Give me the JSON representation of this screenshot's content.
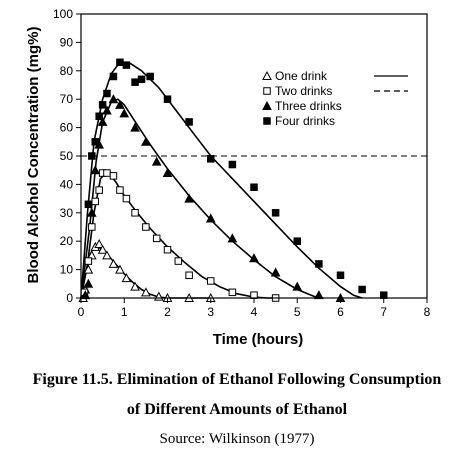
{
  "chart_data": {
    "type": "scatter",
    "xlabel": "Time (hours)",
    "ylabel": "Blood Alcohol Concentration (mg%)",
    "xlim": [
      0,
      8
    ],
    "ylim": [
      0,
      100
    ],
    "xticks": [
      "0",
      "1",
      "2",
      "3",
      "4",
      "5",
      "6",
      "7",
      "8"
    ],
    "yticks": [
      "0",
      "10",
      "20",
      "30",
      "40",
      "50",
      "60",
      "70",
      "80",
      "90",
      "100"
    ],
    "grid": false,
    "legend_position": "top-right",
    "reference_line": {
      "y": 50,
      "style": "dashed"
    },
    "series": [
      {
        "name": "One drink",
        "marker": "open-triangle",
        "points": [
          [
            0.05,
            0
          ],
          [
            0.1,
            3
          ],
          [
            0.17,
            10
          ],
          [
            0.25,
            15
          ],
          [
            0.33,
            18
          ],
          [
            0.42,
            19
          ],
          [
            0.5,
            17
          ],
          [
            0.6,
            15
          ],
          [
            0.75,
            12
          ],
          [
            0.9,
            10
          ],
          [
            1.05,
            7
          ],
          [
            1.25,
            4
          ],
          [
            1.5,
            2
          ],
          [
            1.8,
            0.5
          ],
          [
            2.0,
            0
          ],
          [
            2.5,
            0
          ],
          [
            3.0,
            0
          ]
        ],
        "curve": [
          [
            0,
            0
          ],
          [
            0.1,
            8
          ],
          [
            0.2,
            15
          ],
          [
            0.3,
            18
          ],
          [
            0.4,
            18
          ],
          [
            0.6,
            15.5
          ],
          [
            0.8,
            12
          ],
          [
            1.0,
            8.5
          ],
          [
            1.2,
            5.5
          ],
          [
            1.4,
            3
          ],
          [
            1.6,
            1.3
          ],
          [
            1.8,
            0.3
          ],
          [
            2.0,
            0
          ],
          [
            3.0,
            0
          ]
        ]
      },
      {
        "name": "Two drinks",
        "marker": "open-square",
        "points": [
          [
            0.08,
            2
          ],
          [
            0.17,
            13
          ],
          [
            0.25,
            25
          ],
          [
            0.33,
            34
          ],
          [
            0.42,
            38
          ],
          [
            0.5,
            44
          ],
          [
            0.6,
            44
          ],
          [
            0.75,
            43
          ],
          [
            0.9,
            38
          ],
          [
            1.05,
            35
          ],
          [
            1.25,
            30
          ],
          [
            1.5,
            25
          ],
          [
            1.75,
            21
          ],
          [
            2.0,
            17
          ],
          [
            2.25,
            13
          ],
          [
            2.5,
            8
          ],
          [
            3.0,
            6
          ],
          [
            3.5,
            2
          ],
          [
            4.0,
            1
          ],
          [
            4.5,
            0
          ]
        ],
        "curve": [
          [
            0,
            0
          ],
          [
            0.15,
            12
          ],
          [
            0.3,
            30
          ],
          [
            0.45,
            42
          ],
          [
            0.6,
            44.5
          ],
          [
            0.8,
            41
          ],
          [
            1.0,
            36
          ],
          [
            1.3,
            30
          ],
          [
            1.6,
            24.5
          ],
          [
            2.0,
            18
          ],
          [
            2.4,
            12.5
          ],
          [
            2.8,
            7.5
          ],
          [
            3.2,
            4
          ],
          [
            3.6,
            1.5
          ],
          [
            4.0,
            0.3
          ],
          [
            4.3,
            0
          ],
          [
            4.5,
            0
          ]
        ]
      },
      {
        "name": "Three drinks",
        "marker": "filled-triangle",
        "points": [
          [
            0.1,
            1
          ],
          [
            0.17,
            5
          ],
          [
            0.25,
            30
          ],
          [
            0.33,
            45
          ],
          [
            0.42,
            54
          ],
          [
            0.5,
            62
          ],
          [
            0.6,
            66
          ],
          [
            0.75,
            70
          ],
          [
            0.9,
            68
          ],
          [
            1.0,
            65
          ],
          [
            1.25,
            60
          ],
          [
            1.5,
            55
          ],
          [
            1.75,
            48
          ],
          [
            2.0,
            44
          ],
          [
            2.5,
            35
          ],
          [
            3.0,
            28
          ],
          [
            3.5,
            21
          ],
          [
            4.0,
            14
          ],
          [
            4.5,
            9
          ],
          [
            5.0,
            4
          ],
          [
            5.5,
            1
          ],
          [
            6.0,
            0
          ]
        ],
        "curve": [
          [
            0,
            0
          ],
          [
            0.2,
            25
          ],
          [
            0.35,
            48
          ],
          [
            0.5,
            62
          ],
          [
            0.7,
            69
          ],
          [
            0.85,
            70
          ],
          [
            1.0,
            68
          ],
          [
            1.3,
            61
          ],
          [
            1.6,
            54
          ],
          [
            2.0,
            45.5
          ],
          [
            2.5,
            36
          ],
          [
            3.0,
            27.5
          ],
          [
            3.5,
            20
          ],
          [
            4.0,
            13.5
          ],
          [
            4.5,
            7.5
          ],
          [
            5.0,
            3
          ],
          [
            5.4,
            0.5
          ],
          [
            5.6,
            0
          ]
        ]
      },
      {
        "name": "Four drinks",
        "marker": "filled-square",
        "points": [
          [
            0.17,
            33
          ],
          [
            0.25,
            50
          ],
          [
            0.33,
            55
          ],
          [
            0.42,
            64
          ],
          [
            0.5,
            68
          ],
          [
            0.6,
            72
          ],
          [
            0.75,
            78
          ],
          [
            0.9,
            83
          ],
          [
            1.05,
            82
          ],
          [
            1.25,
            76
          ],
          [
            1.4,
            77
          ],
          [
            1.6,
            78
          ],
          [
            2.0,
            70
          ],
          [
            2.5,
            62
          ],
          [
            3.0,
            49
          ],
          [
            3.5,
            47
          ],
          [
            4.0,
            39
          ],
          [
            4.5,
            30
          ],
          [
            5.0,
            20
          ],
          [
            5.5,
            12
          ],
          [
            6.0,
            8
          ],
          [
            6.5,
            3
          ],
          [
            7.0,
            1
          ]
        ],
        "curve": [
          [
            0,
            0
          ],
          [
            0.15,
            30
          ],
          [
            0.3,
            55
          ],
          [
            0.5,
            70
          ],
          [
            0.7,
            79
          ],
          [
            0.9,
            83
          ],
          [
            1.1,
            83
          ],
          [
            1.4,
            80
          ],
          [
            1.8,
            74
          ],
          [
            2.2,
            66
          ],
          [
            2.6,
            58
          ],
          [
            3.0,
            50
          ],
          [
            3.5,
            42
          ],
          [
            4.0,
            34
          ],
          [
            4.5,
            26
          ],
          [
            5.0,
            18
          ],
          [
            5.5,
            10.5
          ],
          [
            6.0,
            4
          ],
          [
            6.3,
            1
          ],
          [
            6.5,
            0
          ]
        ]
      }
    ],
    "legend": [
      {
        "label": "One drink",
        "marker": "open-triangle",
        "line": "solid"
      },
      {
        "label": "Two drinks",
        "marker": "open-square",
        "line": "dashed"
      },
      {
        "label": "Three drinks",
        "marker": "filled-triangle",
        "line": "none"
      },
      {
        "label": "Four drinks",
        "marker": "filled-square",
        "line": "none"
      }
    ]
  },
  "caption": {
    "line1": "Figure 11.5. Elimination of Ethanol Following Consumption",
    "line2": "of Different Amounts of Ethanol",
    "source": "Source:  Wilkinson (1977)"
  }
}
